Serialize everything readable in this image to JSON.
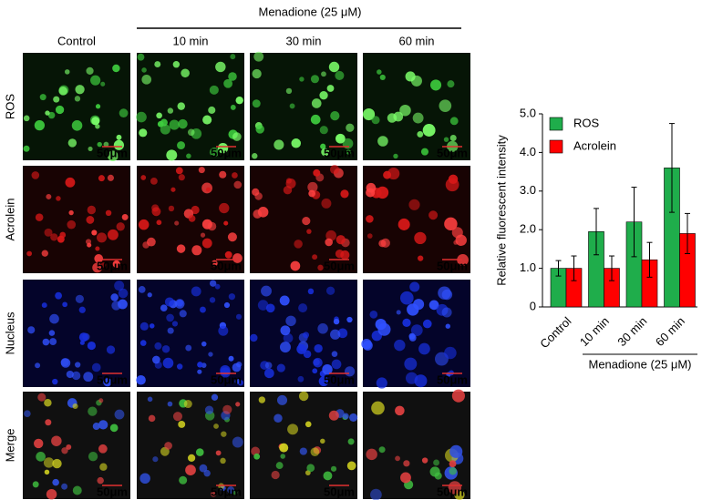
{
  "figure": {
    "header": "Menadione (25 μM)",
    "columns": [
      "Control",
      "10 min",
      "30 min",
      "60 min"
    ],
    "rows": [
      {
        "label": "ROS",
        "color": "#2eaa4a"
      },
      {
        "label": "Acrolein",
        "color": "#e02020"
      },
      {
        "label": "Nucleus",
        "color": "#2a6fd0"
      },
      {
        "label": "Merge",
        "color": "#000000"
      }
    ],
    "scale_bar": "50μm"
  },
  "chart_data": {
    "type": "bar",
    "ylabel": "Relative fluorescent intensity",
    "categories": [
      "Control",
      "10 min",
      "30 min",
      "60 min"
    ],
    "series": [
      {
        "name": "ROS",
        "color": "#1fad4b",
        "values": [
          1.0,
          1.95,
          2.2,
          3.6
        ],
        "errors": [
          0.2,
          0.6,
          0.9,
          1.15
        ]
      },
      {
        "name": "Acrolein",
        "color": "#ff0000",
        "values": [
          1.0,
          1.0,
          1.22,
          1.9
        ],
        "errors": [
          0.32,
          0.32,
          0.45,
          0.52
        ]
      }
    ],
    "ylim": [
      0,
      5
    ],
    "yticks": [
      0,
      {
        "value": 1,
        "label": "1.0"
      },
      {
        "value": 2,
        "label": "2.0"
      },
      {
        "value": 3,
        "label": "3.0"
      },
      {
        "value": 4,
        "label": "4.0"
      },
      {
        "value": 5,
        "label": "5.0"
      }
    ],
    "legend": "upper left",
    "group_label": "Menadione (25 μM)"
  }
}
